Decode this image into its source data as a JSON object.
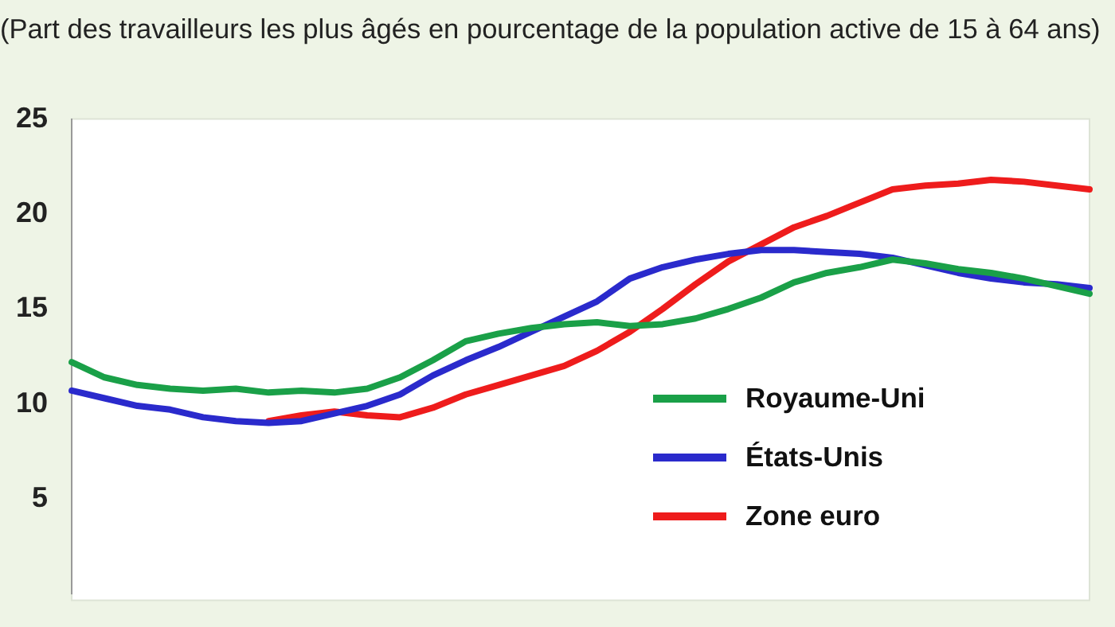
{
  "chart_data": {
    "type": "line",
    "subtitle": "(Part des travailleurs les plus âgés en pourcentage de la population active de 15 à 64 ans)",
    "categories": [
      null,
      null,
      null,
      null,
      null,
      null,
      null,
      null,
      null,
      null,
      null,
      null,
      null,
      null,
      null,
      null,
      null,
      null,
      null,
      null,
      null,
      null,
      null,
      null,
      null,
      null,
      null,
      null,
      null,
      null,
      null,
      null
    ],
    "series": [
      {
        "name": "Royaume-Uni",
        "color": "#1aa048",
        "values": [
          12.2,
          11.4,
          11.0,
          10.8,
          10.7,
          10.8,
          10.6,
          10.7,
          10.6,
          10.8,
          11.4,
          12.3,
          13.3,
          13.7,
          14.0,
          14.2,
          14.3,
          14.1,
          14.2,
          14.5,
          15.0,
          15.6,
          16.4,
          16.9,
          17.2,
          17.6,
          17.4,
          17.1,
          16.9,
          16.6,
          16.2,
          15.8
        ]
      },
      {
        "name": "États-Unis",
        "color": "#2a2acc",
        "values": [
          10.7,
          10.3,
          9.9,
          9.7,
          9.3,
          9.1,
          9.0,
          9.1,
          9.5,
          9.9,
          10.5,
          11.5,
          12.3,
          13.0,
          13.8,
          14.6,
          15.4,
          16.6,
          17.2,
          17.6,
          17.9,
          18.1,
          18.1,
          18.0,
          17.9,
          17.7,
          17.3,
          16.9,
          16.6,
          16.4,
          16.3,
          16.1
        ]
      },
      {
        "name": "Zone euro",
        "color": "#ee1c1c",
        "values": [
          null,
          null,
          null,
          null,
          null,
          null,
          9.1,
          9.4,
          9.6,
          9.4,
          9.3,
          9.8,
          10.5,
          11.0,
          11.5,
          12.0,
          12.8,
          13.8,
          15.0,
          16.3,
          17.5,
          18.4,
          19.3,
          19.9,
          20.6,
          21.3,
          21.5,
          21.6,
          21.8,
          21.7,
          21.5,
          21.3
        ]
      }
    ],
    "ylim": [
      0,
      25
    ],
    "yticks": [
      5,
      10,
      15,
      20,
      25
    ],
    "tick_labels": "y",
    "grid": false,
    "legend": "right",
    "marker": "none",
    "line_style": "solid"
  }
}
